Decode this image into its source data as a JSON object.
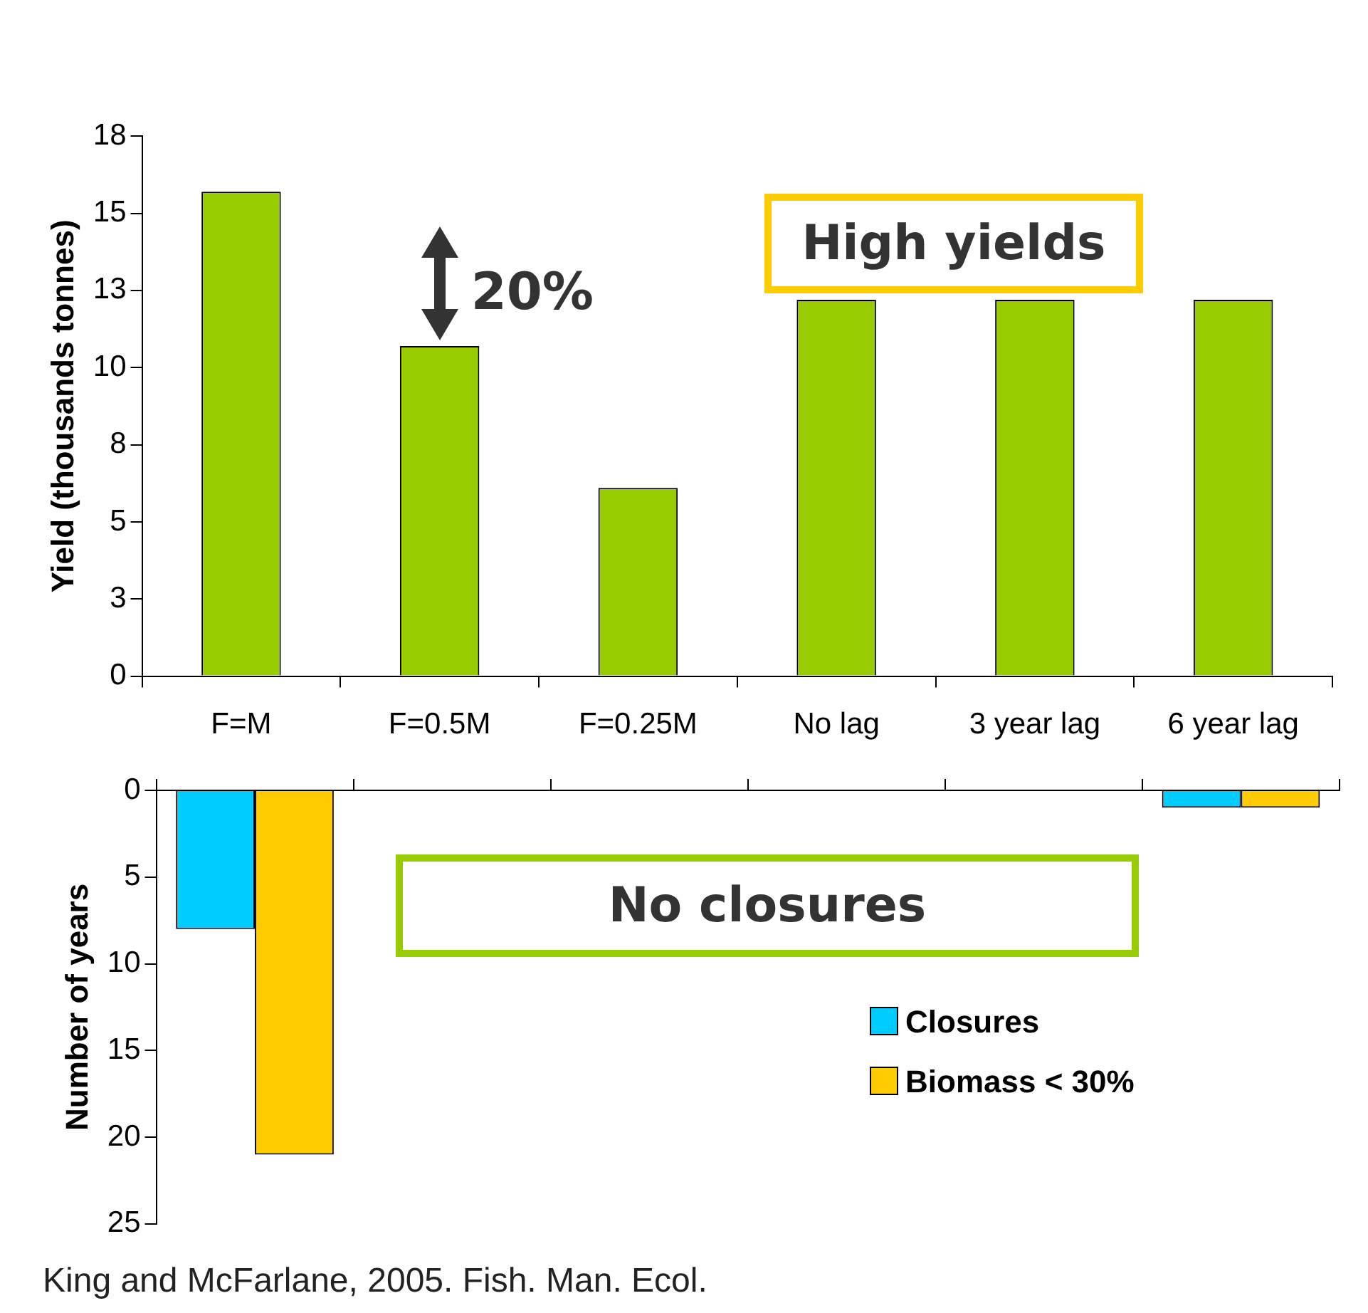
{
  "chart_data": [
    {
      "type": "bar",
      "categories": [
        "F=M",
        "F=0.5M",
        "F=0.25M",
        "No lag",
        "3 year lag",
        "6 year lag"
      ],
      "values": [
        15.7,
        10.7,
        6.1,
        12.2,
        12.2,
        12.2
      ],
      "color": "#99cc00",
      "ylabel": "Yield (thousands tonnes)",
      "ylim": [
        0,
        17.5
      ],
      "yticks": [
        0,
        {
          "value": 2.5,
          "label": "3"
        },
        5,
        {
          "value": 7.5,
          "label": "8"
        },
        10,
        {
          "value": 12.5,
          "label": "13"
        },
        15,
        {
          "value": 17.5,
          "label": "18"
        }
      ],
      "grid": false,
      "legend": false,
      "annotations": [
        {
          "text": "20%",
          "x": "F=0.5M",
          "y": 10.7
        },
        "High yields"
      ]
    },
    {
      "type": "bar",
      "categories": [
        null,
        null,
        null,
        null,
        null,
        null
      ],
      "series": [
        {
          "name": "Closures",
          "color": "#00ccff",
          "values": [
            8,
            0,
            0,
            0,
            0,
            1
          ]
        },
        {
          "name": "Biomass < 30%",
          "color": "#ffcc00",
          "values": [
            21,
            0,
            0,
            0,
            0,
            1
          ]
        }
      ],
      "ylabel": "Number of years",
      "ylim": [
        25,
        0
      ],
      "yticks": [
        0,
        5,
        10,
        15,
        20,
        25
      ],
      "grid": false,
      "legend": "right",
      "tick_labels": "y",
      "annotations": [
        "No closures",
        "King and McFarlane, 2005. Fish. Man. Ecol."
      ]
    }
  ]
}
